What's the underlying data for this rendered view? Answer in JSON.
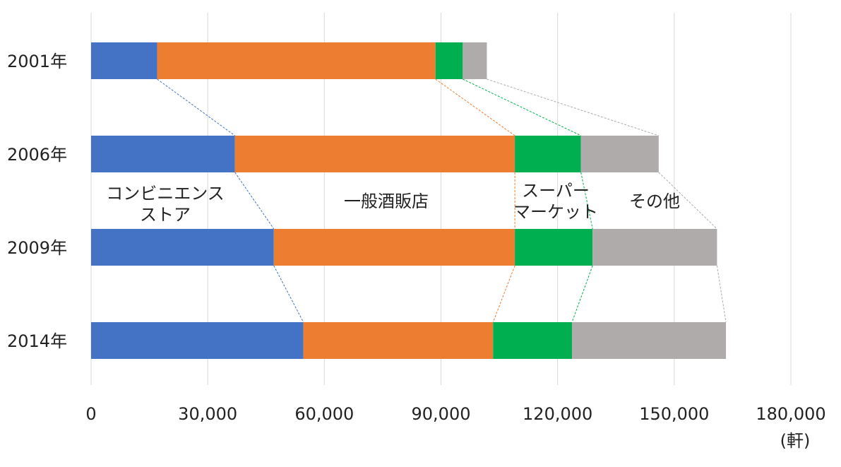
{
  "chart_data": {
    "type": "bar",
    "orientation": "horizontal",
    "stacked": true,
    "categories": [
      "2001年",
      "2006年",
      "2009年",
      "2014年"
    ],
    "series": [
      {
        "name": "コンビニエンスストア",
        "label_lines": [
          "コンビニエンス",
          "ストア"
        ],
        "color": "#4472C4",
        "values": [
          17000,
          37000,
          47000,
          54600
        ]
      },
      {
        "name": "一般酒販店",
        "label_lines": [
          "一般酒販店"
        ],
        "color": "#ED7D31",
        "values": [
          71600,
          72000,
          62000,
          48800
        ]
      },
      {
        "name": "スーパーマーケット",
        "label_lines": [
          "スーパー",
          "マーケット"
        ],
        "color": "#00B050",
        "values": [
          7000,
          17000,
          20000,
          20300
        ]
      },
      {
        "name": "その他",
        "label_lines": [
          "その他"
        ],
        "color": "#AFABAB",
        "values": [
          6200,
          20000,
          32000,
          39600
        ]
      }
    ],
    "xlim": [
      0,
      180000
    ],
    "xticks": [
      "0",
      "30,000",
      "60,000",
      "90,000",
      "120,000",
      "150,000",
      "180,000"
    ],
    "xtick_values": [
      0,
      30000,
      60000,
      90000,
      120000,
      150000,
      180000
    ],
    "unit_label": "(軒)",
    "grid": true,
    "connector_lines": "dashed",
    "legend": "inline labels between bars"
  }
}
